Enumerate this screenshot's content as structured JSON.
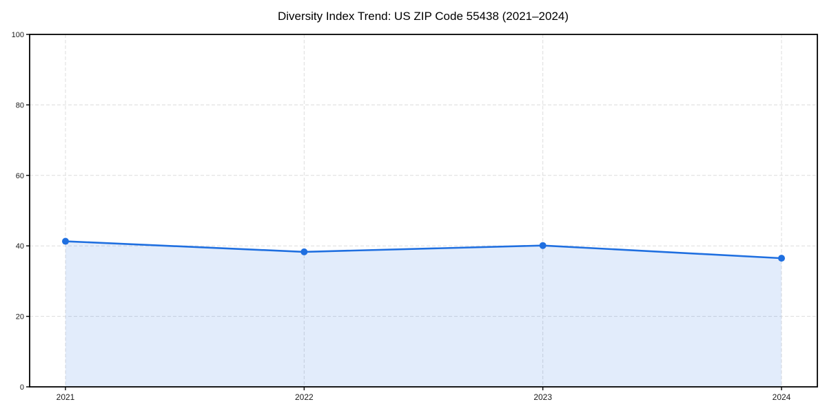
{
  "chart_data": {
    "type": "area",
    "title": "Diversity Index Trend: US ZIP Code 55438 (2021–2024)",
    "categories": [
      "2021",
      "2022",
      "2023",
      "2024"
    ],
    "series": [
      {
        "name": "Diversity Index",
        "values": [
          41.3,
          38.3,
          40.1,
          36.5
        ]
      }
    ],
    "xlabel": "",
    "ylabel": "",
    "ylim": [
      0,
      100
    ],
    "yticks": [
      0,
      20,
      40,
      60,
      80,
      100
    ],
    "grid": true,
    "grid_style": "dashed",
    "legend": "none",
    "marker": "circle",
    "colors": {
      "line": "#1f6fe0",
      "marker": "#1f6fe0",
      "fill": "#1f6fe0",
      "fill_opacity": 0.13,
      "grid": "#dcdcdc",
      "spine": "#000000",
      "tick_text": "#1a1a1a",
      "background": "#ffffff"
    }
  }
}
